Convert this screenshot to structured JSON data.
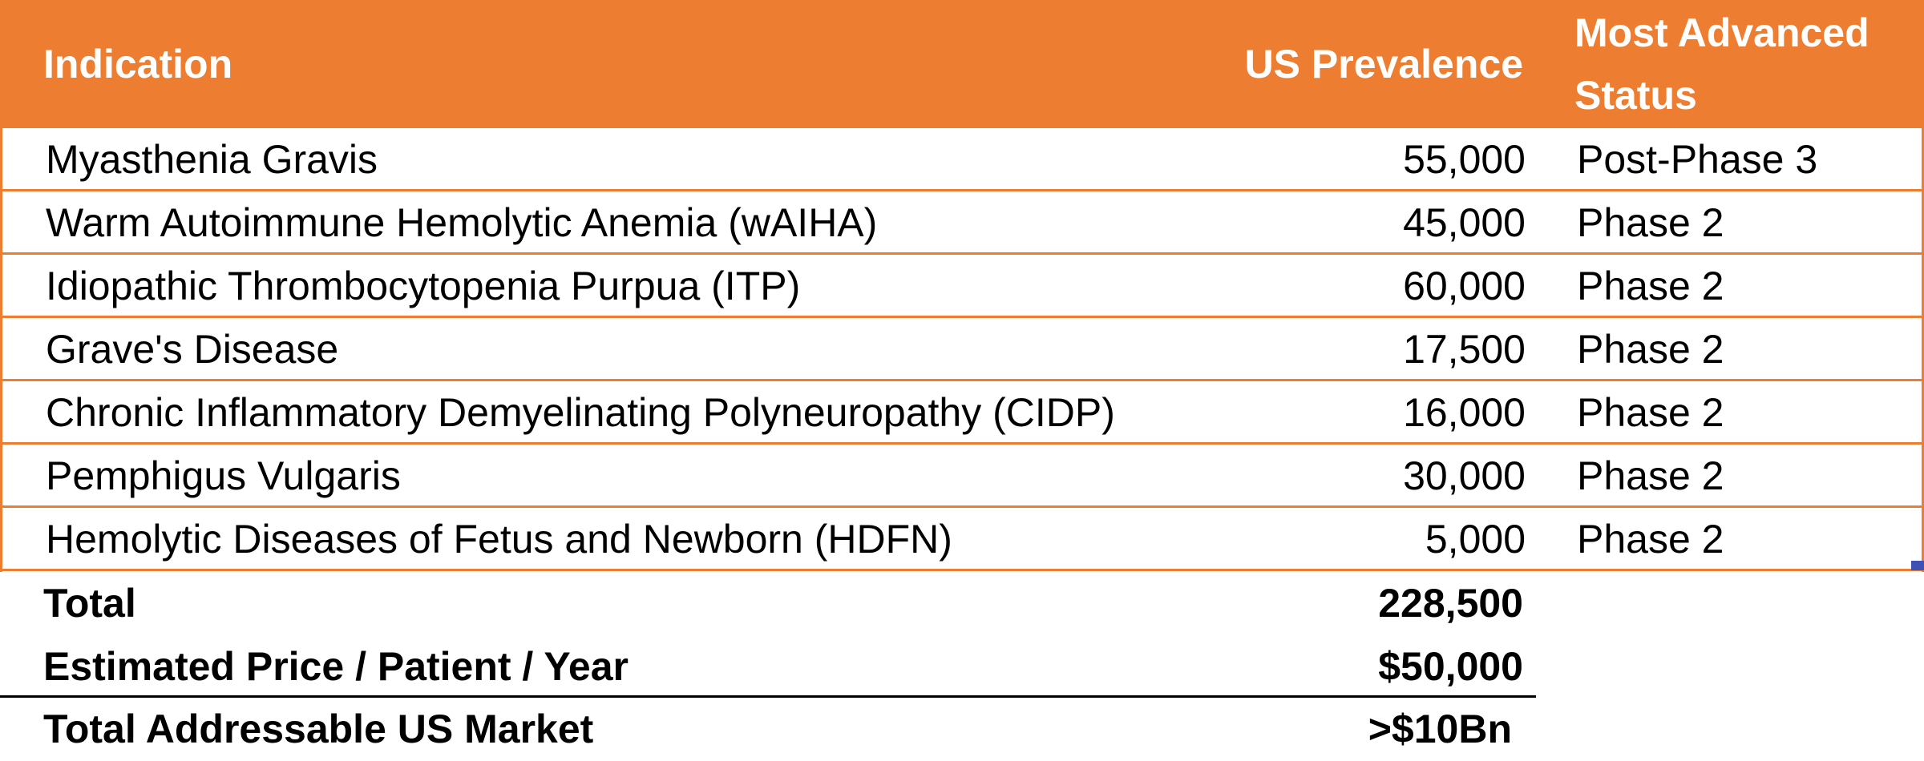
{
  "header": {
    "indication": "Indication",
    "prevalence": "US Prevalence",
    "status_line1": "Most Advanced",
    "status_line2": "Status"
  },
  "rows": [
    {
      "indication": "Myasthenia Gravis",
      "prevalence": "55,000",
      "status": "Post-Phase 3"
    },
    {
      "indication": "Warm Autoimmune Hemolytic Anemia (wAIHA)",
      "prevalence": "45,000",
      "status": "Phase 2"
    },
    {
      "indication": "Idiopathic Thrombocytopenia Purpua (ITP)",
      "prevalence": "60,000",
      "status": "Phase 2"
    },
    {
      "indication": "Grave's Disease",
      "prevalence": "17,500",
      "status": "Phase 2"
    },
    {
      "indication": "Chronic Inflammatory Demyelinating Polyneuropathy (CIDP)",
      "prevalence": "16,000",
      "status": "Phase 2"
    },
    {
      "indication": "Pemphigus Vulgaris",
      "prevalence": "30,000",
      "status": "Phase 2"
    },
    {
      "indication": "Hemolytic Diseases of Fetus and Newborn (HDFN)",
      "prevalence": "5,000",
      "status": "Phase 2"
    }
  ],
  "summary": {
    "total_label": "Total",
    "total_value": "228,500",
    "price_label": "Estimated Price / Patient / Year",
    "price_value": "$50,000",
    "market_label": "Total Addressable US Market",
    "market_value": ">$10Bn"
  },
  "colors": {
    "header_bg": "#ED7D31",
    "border": "#ED7D31",
    "selection_handle": "#3F51B5"
  }
}
